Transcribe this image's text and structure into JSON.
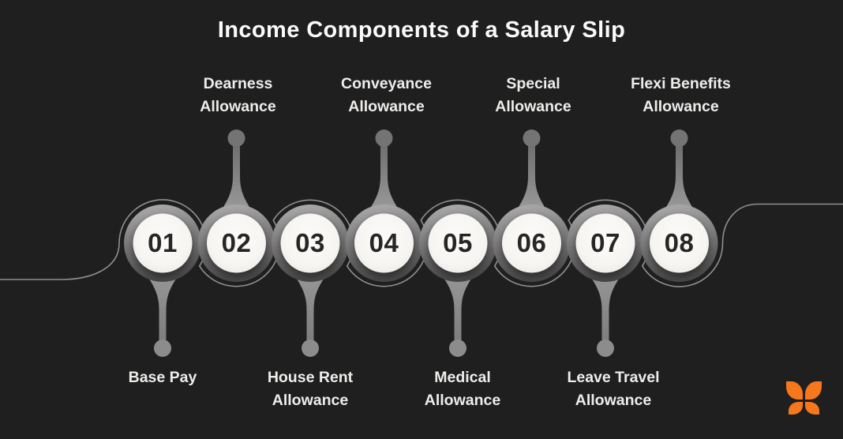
{
  "title": "Income Components of a Salary Slip",
  "items": [
    {
      "number": "01",
      "label": "Base Pay",
      "lines": [
        "Base Pay"
      ],
      "label_position": "bottom"
    },
    {
      "number": "02",
      "label": "Dearness Allowance",
      "lines": [
        "Dearness",
        "Allowance"
      ],
      "label_position": "top"
    },
    {
      "number": "03",
      "label": "House Rent Allowance",
      "lines": [
        "House Rent",
        "Allowance"
      ],
      "label_position": "bottom"
    },
    {
      "number": "04",
      "label": "Conveyance Allowance",
      "lines": [
        "Conveyance",
        "Allowance"
      ],
      "label_position": "top"
    },
    {
      "number": "05",
      "label": "Medical Allowance",
      "lines": [
        "Medical",
        "Allowance"
      ],
      "label_position": "bottom"
    },
    {
      "number": "06",
      "label": "Special Allowance",
      "lines": [
        "Special",
        "Allowance"
      ],
      "label_position": "top"
    },
    {
      "number": "07",
      "label": "Leave Travel Allowance",
      "lines": [
        "Leave Travel",
        "Allowance"
      ],
      "label_position": "bottom"
    },
    {
      "number": "08",
      "label": "Flexi Benefits Allowance",
      "lines": [
        "Flexi Benefits",
        "Allowance"
      ],
      "label_position": "top"
    }
  ],
  "logo": {
    "name": "butterfly-logo"
  },
  "colors": {
    "background": "#1F1F20",
    "title_text": "#FAFAF9",
    "label_text": "#EFEDEA",
    "number_text": "#262626",
    "circle_fill": "#F7F5F2",
    "marker_gray": "#7E7E7E",
    "wave_line": "#8F8F8F",
    "logo_orange": "#F6771C"
  }
}
